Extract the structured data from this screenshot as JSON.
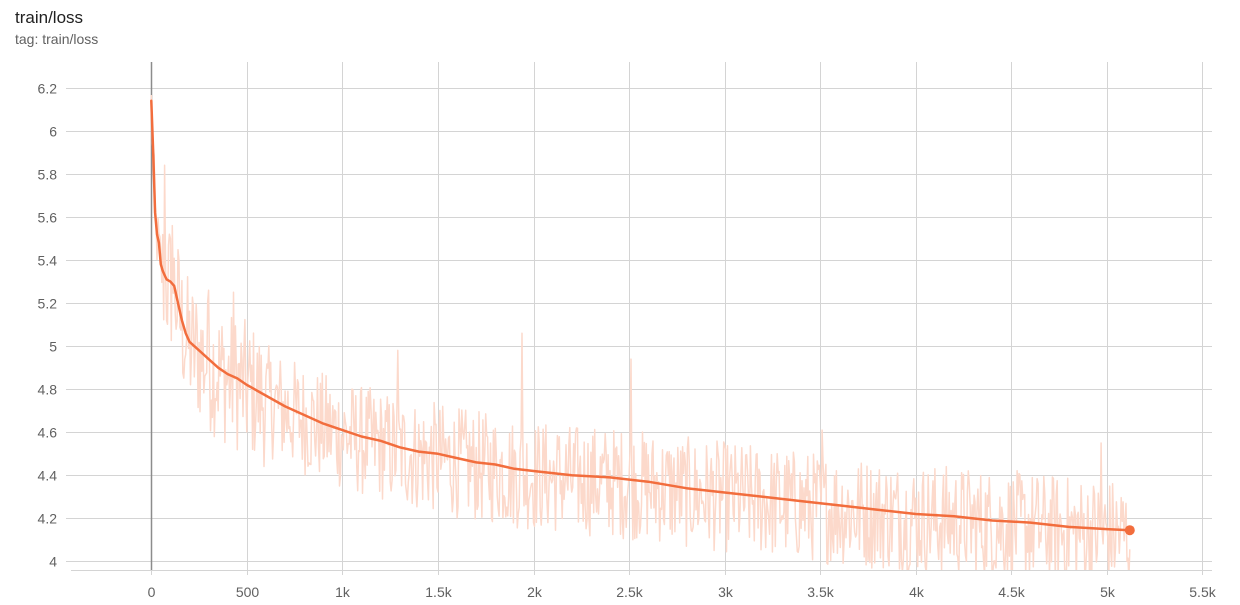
{
  "card": {
    "title": "train/loss",
    "subtitle": "tag: train/loss"
  },
  "colors": {
    "smoothed": "#f26d3d",
    "raw": "#fcd9cb",
    "grid": "#d4d4d4",
    "zero_line": "#8c8c8c",
    "tick_text": "#616161"
  },
  "chart_data": {
    "type": "line",
    "title": "train/loss",
    "xlim": [
      -420,
      5550
    ],
    "ylim": [
      3.96,
      6.32
    ],
    "x_ticks": [
      0,
      500,
      1000,
      1500,
      2000,
      2500,
      3000,
      3500,
      4000,
      4500,
      5000,
      5500
    ],
    "x_tick_labels": [
      "0",
      "500",
      "1k",
      "1.5k",
      "2k",
      "2.5k",
      "3k",
      "3.5k",
      "4k",
      "4.5k",
      "5k",
      "5.5k"
    ],
    "y_ticks": [
      4,
      4.2,
      4.4,
      4.6,
      4.8,
      5,
      5.2,
      5.4,
      5.6,
      5.8,
      6,
      6.2
    ],
    "y_tick_labels": [
      "4",
      "4.2",
      "4.4",
      "4.6",
      "4.8",
      "5",
      "5.2",
      "5.4",
      "5.6",
      "5.8",
      "6",
      "6.2"
    ],
    "grid": true,
    "series": [
      {
        "role": "smoothed",
        "x": [
          0,
          10,
          20,
          30,
          40,
          50,
          60,
          70,
          80,
          100,
          120,
          140,
          160,
          180,
          200,
          250,
          300,
          350,
          400,
          450,
          500,
          600,
          700,
          800,
          900,
          1000,
          1100,
          1200,
          1300,
          1400,
          1500,
          1600,
          1700,
          1800,
          1900,
          2000,
          2200,
          2400,
          2600,
          2800,
          3000,
          3200,
          3400,
          3600,
          3800,
          4000,
          4200,
          4400,
          4600,
          4800,
          5000,
          5120
        ],
        "y": [
          6.14,
          5.9,
          5.62,
          5.52,
          5.48,
          5.38,
          5.35,
          5.33,
          5.31,
          5.3,
          5.28,
          5.2,
          5.12,
          5.06,
          5.02,
          4.98,
          4.94,
          4.9,
          4.87,
          4.85,
          4.82,
          4.77,
          4.72,
          4.68,
          4.64,
          4.61,
          4.58,
          4.56,
          4.53,
          4.51,
          4.5,
          4.48,
          4.46,
          4.45,
          4.43,
          4.42,
          4.4,
          4.39,
          4.37,
          4.34,
          4.32,
          4.3,
          4.28,
          4.26,
          4.24,
          4.22,
          4.21,
          4.19,
          4.18,
          4.16,
          4.15,
          4.145
        ]
      }
    ],
    "raw_series_spikes": [
      {
        "x": 70,
        "y": 5.84
      },
      {
        "x": 110,
        "y": 5.56
      },
      {
        "x": 300,
        "y": 5.26
      },
      {
        "x": 430,
        "y": 5.25
      },
      {
        "x": 1290,
        "y": 4.98
      },
      {
        "x": 1940,
        "y": 5.06
      },
      {
        "x": 2510,
        "y": 4.94
      },
      {
        "x": 3510,
        "y": 4.61
      },
      {
        "x": 4970,
        "y": 4.55
      }
    ]
  }
}
